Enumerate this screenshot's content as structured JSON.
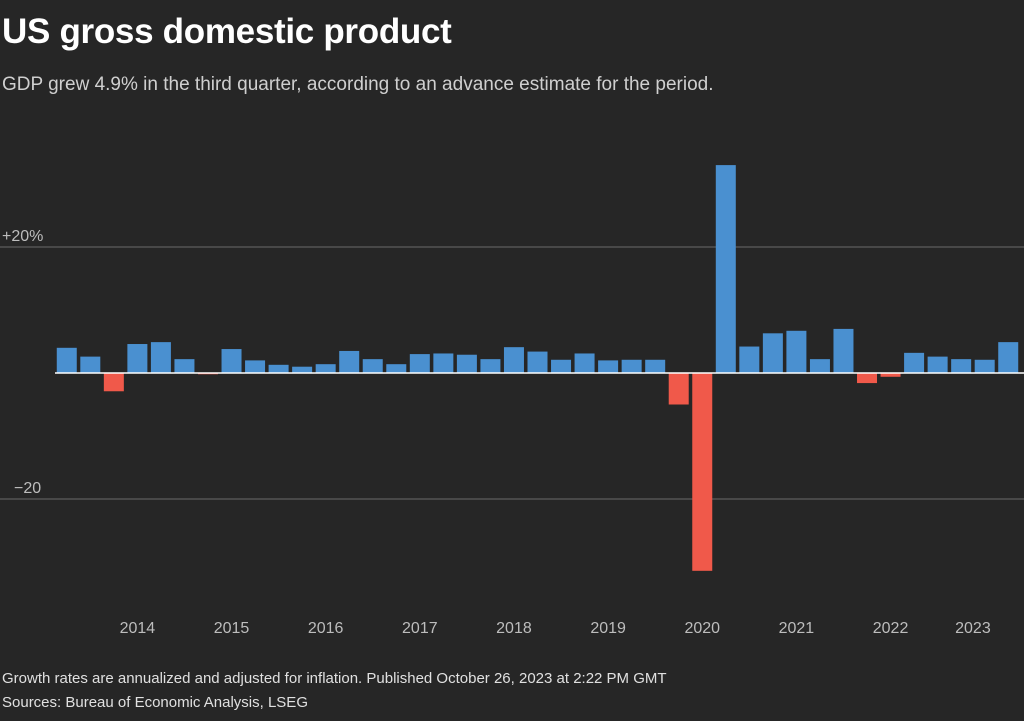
{
  "header": {
    "title": "US gross domestic product",
    "subtitle": "GDP grew 4.9% in the third quarter, according to an advance estimate for the period."
  },
  "footer": {
    "note": "Growth rates are annualized and adjusted for inflation. Published October 26, 2023 at 2:22 PM GMT",
    "sources": "Sources: Bureau of Economic Analysis, LSEG"
  },
  "colors": {
    "background": "#262626",
    "positive": "#4a90d0",
    "negative": "#f0594a",
    "gridline": "#6a6a6a",
    "zeroline": "#ffffff"
  },
  "chart_data": {
    "type": "bar",
    "title": "US gross domestic product",
    "xlabel": "",
    "ylabel": "",
    "ylim": [
      -33,
      33.5
    ],
    "grid": true,
    "y_ticks": [
      {
        "value": 20,
        "label": "+20%"
      },
      {
        "value": -20,
        "label": "−20"
      }
    ],
    "x_tick_labels": [
      "2014",
      "2015",
      "2016",
      "2017",
      "2018",
      "2019",
      "2020",
      "2021",
      "2022",
      "2023"
    ],
    "categories": [
      "2013 Q3",
      "2013 Q4",
      "2014 Q1",
      "2014 Q2",
      "2014 Q3",
      "2014 Q4",
      "2015 Q1",
      "2015 Q2",
      "2015 Q3",
      "2015 Q4",
      "2016 Q1",
      "2016 Q2",
      "2016 Q3",
      "2016 Q4",
      "2017 Q1",
      "2017 Q2",
      "2017 Q3",
      "2017 Q4",
      "2018 Q1",
      "2018 Q2",
      "2018 Q3",
      "2018 Q4",
      "2019 Q1",
      "2019 Q2",
      "2019 Q3",
      "2019 Q4",
      "2020 Q1",
      "2020 Q2",
      "2020 Q3",
      "2020 Q4",
      "2021 Q1",
      "2021 Q2",
      "2021 Q3",
      "2021 Q4",
      "2022 Q1",
      "2022 Q2",
      "2022 Q3",
      "2022 Q4",
      "2023 Q1",
      "2023 Q2",
      "2023 Q3"
    ],
    "values": [
      4.0,
      2.6,
      -2.9,
      4.6,
      4.9,
      2.2,
      -0.2,
      3.8,
      2.0,
      1.3,
      1.0,
      1.4,
      3.5,
      2.2,
      1.4,
      3.0,
      3.1,
      2.9,
      2.2,
      4.1,
      3.4,
      2.1,
      3.1,
      2.0,
      2.1,
      2.1,
      -5.0,
      -31.4,
      33.0,
      4.2,
      6.3,
      6.7,
      2.2,
      7.0,
      -1.6,
      -0.6,
      3.2,
      2.6,
      2.2,
      2.1,
      4.9
    ]
  }
}
